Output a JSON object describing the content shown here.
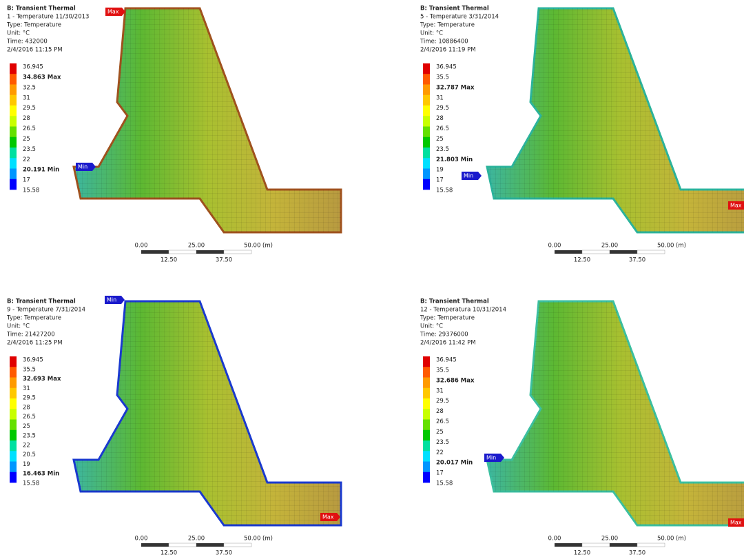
{
  "panels": [
    {
      "header": [
        "B: Transient Thermal",
        "1 - Temperature 11/30/2013",
        "Type: Temperature",
        "Unit: °C",
        "Time: 432000",
        "2/4/2016 11:15 PM"
      ],
      "legend": [
        "36.945",
        "34.863 Max",
        "32.5",
        "31",
        "29.5",
        "28",
        "26.5",
        "25",
        "23.5",
        "22",
        "20.191 Min",
        "17",
        "15.58"
      ],
      "max_tag": "Max",
      "min_tag": "Min",
      "scale": {
        "top": [
          "0.00",
          "25.00",
          "50.00 (m)"
        ],
        "bottom": [
          "12.50",
          "37.50"
        ]
      }
    },
    {
      "header": [
        "B: Transient Thermal",
        "5 - Temperature 3/31/2014",
        "Type: Temperature",
        "Unit: °C",
        "Time: 10886400",
        "2/4/2016 11:19 PM"
      ],
      "legend": [
        "36.945",
        "35.5",
        "32.787 Max",
        "31",
        "29.5",
        "28",
        "26.5",
        "25",
        "23.5",
        "21.803 Min",
        "19",
        "17",
        "15.58"
      ],
      "max_tag": "Max",
      "min_tag": "Min",
      "scale": {
        "top": [
          "0.00",
          "25.00",
          "50.00 (m)"
        ],
        "bottom": [
          "12.50",
          "37.50"
        ]
      }
    },
    {
      "header": [
        "B: Transient Thermal",
        "9 - Temperature 7/31/2014",
        "Type: Temperature",
        "Unit: °C",
        "Time: 21427200",
        "2/4/2016 11:25 PM"
      ],
      "legend": [
        "36.945",
        "35.5",
        "32.693 Max",
        "31",
        "29.5",
        "28",
        "26.5",
        "25",
        "23.5",
        "22",
        "20.5",
        "19",
        "16.463 Min",
        "15.58"
      ],
      "max_tag": "Max",
      "min_tag": "Min",
      "scale": {
        "top": [
          "0.00",
          "25.00",
          "50.00 (m)"
        ],
        "bottom": [
          "12.50",
          "37.50"
        ]
      }
    },
    {
      "header": [
        "B: Transient Thermal",
        "12 - Temperatura 10/31/2014",
        "Type: Temperature",
        "Unit: °C",
        "Time: 29376000",
        "2/4/2016 11:42 PM"
      ],
      "legend": [
        "36.945",
        "35.5",
        "32.686 Max",
        "31",
        "29.5",
        "28",
        "26.5",
        "25",
        "23.5",
        "22",
        "20.017 Min",
        "17",
        "15.58"
      ],
      "max_tag": "Max",
      "min_tag": "Min",
      "scale": {
        "top": [
          "0.00",
          "25.00",
          "50.00 (m)"
        ],
        "bottom": [
          "12.50",
          "37.50"
        ]
      }
    }
  ]
}
